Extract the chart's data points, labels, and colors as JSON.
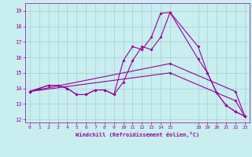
{
  "xlabel": "Windchill (Refroidissement éolien,°C)",
  "bg_color": "#c8eef0",
  "grid_color": "#a8ccd4",
  "line_color": "#990099",
  "xlim": [
    -0.5,
    23.5
  ],
  "ylim": [
    11.8,
    19.5
  ],
  "xticks": [
    0,
    1,
    2,
    3,
    4,
    5,
    6,
    7,
    8,
    9,
    10,
    11,
    12,
    13,
    14,
    15,
    18,
    19,
    20,
    21,
    22,
    23
  ],
  "yticks": [
    12,
    13,
    14,
    15,
    16,
    17,
    18,
    19
  ],
  "curve1_x": [
    0,
    1,
    2,
    3,
    4,
    5,
    6,
    7,
    8,
    9,
    10,
    11,
    12,
    13,
    14,
    15,
    18,
    19,
    20,
    21,
    22,
    23
  ],
  "curve1_y": [
    13.8,
    14.0,
    14.2,
    14.2,
    14.0,
    13.6,
    13.6,
    13.9,
    13.9,
    13.6,
    15.8,
    16.7,
    16.5,
    17.3,
    18.85,
    18.9,
    16.7,
    15.0,
    13.7,
    12.9,
    12.5,
    12.2
  ],
  "curve2_x": [
    0,
    1,
    2,
    3,
    4,
    5,
    6,
    7,
    8,
    9,
    10,
    11,
    12,
    13,
    14,
    15,
    18,
    19,
    20,
    21,
    22,
    23
  ],
  "curve2_y": [
    13.8,
    14.0,
    14.2,
    14.2,
    14.0,
    13.6,
    13.6,
    13.9,
    13.9,
    13.6,
    14.4,
    15.8,
    16.7,
    16.5,
    17.3,
    18.9,
    15.9,
    15.0,
    13.7,
    12.9,
    12.5,
    12.2
  ],
  "curve3_x": [
    0,
    15,
    22,
    23
  ],
  "curve3_y": [
    13.8,
    15.6,
    13.8,
    12.2
  ],
  "curve4_x": [
    0,
    15,
    22,
    23
  ],
  "curve4_y": [
    13.8,
    15.0,
    13.2,
    12.2
  ]
}
